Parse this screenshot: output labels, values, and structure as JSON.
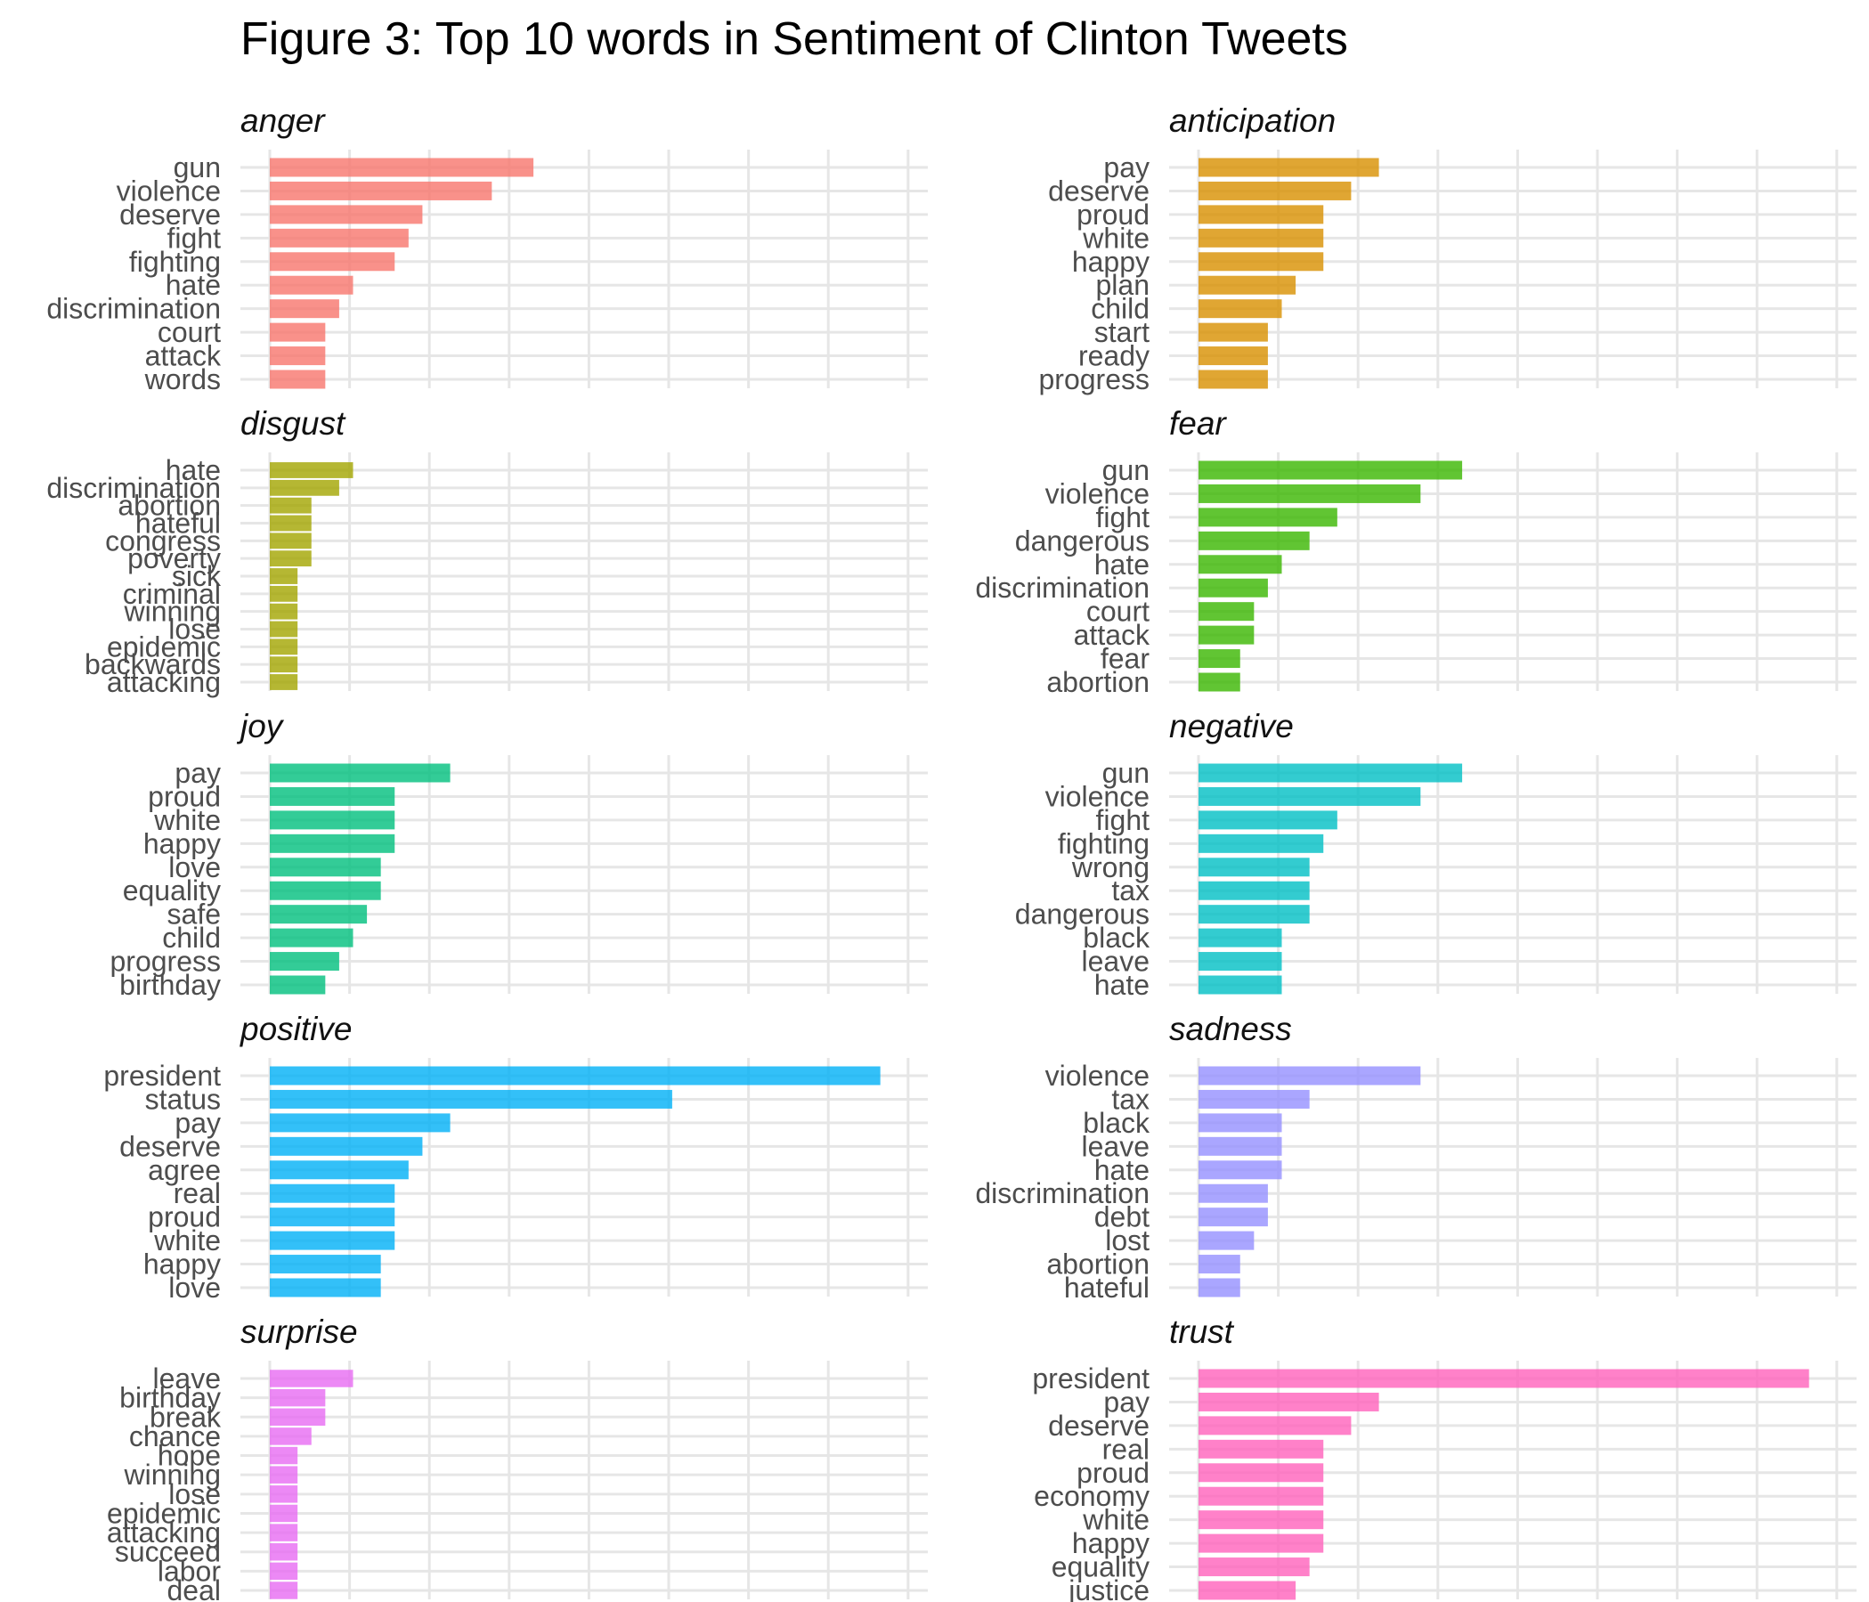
{
  "title": "Figure 3: Top 10 words in Sentiment of Clinton Tweets",
  "chart_data": {
    "type": "bar",
    "orientation": "horizontal",
    "grid": true,
    "legend": "none",
    "xlim": [
      0,
      46
    ],
    "panels": [
      {
        "name": "anger",
        "color": "#F8766D",
        "categories": [
          "gun",
          "violence",
          "deserve",
          "fight",
          "fighting",
          "hate",
          "discrimination",
          "court",
          "attack",
          "words"
        ],
        "values": [
          19,
          16,
          11,
          10,
          9,
          6,
          5,
          4,
          4,
          4
        ]
      },
      {
        "name": "anticipation",
        "color": "#D89000",
        "categories": [
          "pay",
          "deserve",
          "proud",
          "white",
          "happy",
          "plan",
          "child",
          "start",
          "ready",
          "progress"
        ],
        "values": [
          13,
          11,
          9,
          9,
          9,
          7,
          6,
          5,
          5,
          5
        ]
      },
      {
        "name": "disgust",
        "color": "#A3A500",
        "categories": [
          "hate",
          "discrimination",
          "abortion",
          "hateful",
          "congress",
          "poverty",
          "sick",
          "criminal",
          "winning",
          "lose",
          "epidemic",
          "backwards",
          "attacking"
        ],
        "values": [
          6,
          5,
          3,
          3,
          3,
          3,
          2,
          2,
          2,
          2,
          2,
          2,
          2
        ]
      },
      {
        "name": "fear",
        "color": "#39B600",
        "categories": [
          "gun",
          "violence",
          "fight",
          "dangerous",
          "hate",
          "discrimination",
          "court",
          "attack",
          "fear",
          "abortion"
        ],
        "values": [
          19,
          16,
          10,
          8,
          6,
          5,
          4,
          4,
          3,
          3
        ]
      },
      {
        "name": "joy",
        "color": "#00BF7D",
        "categories": [
          "pay",
          "proud",
          "white",
          "happy",
          "love",
          "equality",
          "safe",
          "child",
          "progress",
          "birthday"
        ],
        "values": [
          13,
          9,
          9,
          9,
          8,
          8,
          7,
          6,
          5,
          4
        ]
      },
      {
        "name": "negative",
        "color": "#00BFC4",
        "categories": [
          "gun",
          "violence",
          "fight",
          "fighting",
          "wrong",
          "tax",
          "dangerous",
          "black",
          "leave",
          "hate"
        ],
        "values": [
          19,
          16,
          10,
          9,
          8,
          8,
          8,
          6,
          6,
          6
        ]
      },
      {
        "name": "positive",
        "color": "#00B0F6",
        "categories": [
          "president",
          "status",
          "pay",
          "deserve",
          "agree",
          "real",
          "proud",
          "white",
          "happy",
          "love"
        ],
        "values": [
          44,
          29,
          13,
          11,
          10,
          9,
          9,
          9,
          8,
          8
        ]
      },
      {
        "name": "sadness",
        "color": "#9590FF",
        "categories": [
          "violence",
          "tax",
          "black",
          "leave",
          "hate",
          "discrimination",
          "debt",
          "lost",
          "abortion",
          "hateful"
        ],
        "values": [
          16,
          8,
          6,
          6,
          6,
          5,
          5,
          4,
          3,
          3
        ]
      },
      {
        "name": "surprise",
        "color": "#E76BF3",
        "categories": [
          "leave",
          "birthday",
          "break",
          "chance",
          "hope",
          "winning",
          "lose",
          "epidemic",
          "attacking",
          "succeed",
          "labor",
          "deal"
        ],
        "values": [
          6,
          4,
          4,
          3,
          2,
          2,
          2,
          2,
          2,
          2,
          2,
          2
        ]
      },
      {
        "name": "trust",
        "color": "#FF62BC",
        "categories": [
          "president",
          "pay",
          "deserve",
          "real",
          "proud",
          "economy",
          "white",
          "happy",
          "equality",
          "justice"
        ],
        "values": [
          44,
          13,
          11,
          9,
          9,
          9,
          9,
          9,
          8,
          7
        ]
      }
    ]
  }
}
